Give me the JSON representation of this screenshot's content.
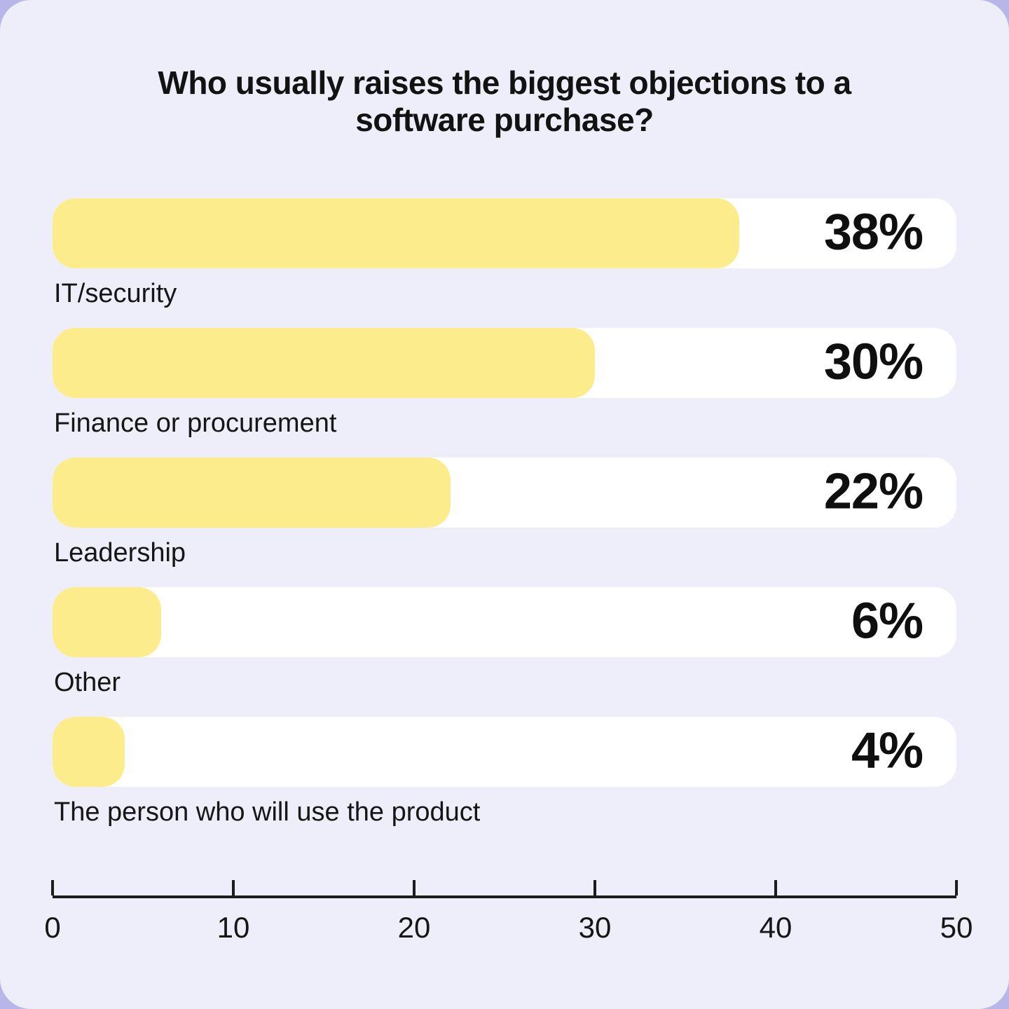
{
  "page": {
    "outer_background": "#b8b6e9",
    "panel_background": "#eeedfa"
  },
  "chart_data": {
    "type": "bar",
    "orientation": "horizontal",
    "title": "Who usually raises the biggest objections to a software purchase?",
    "categories": [
      "IT/security",
      "Finance or procurement",
      "Leadership",
      "Other",
      "The person who will use the product"
    ],
    "values": [
      38,
      30,
      22,
      6,
      4
    ],
    "xlabel": "",
    "ylabel": "",
    "xlim": [
      0,
      50
    ],
    "x_ticks": [
      0,
      10,
      20,
      30,
      40,
      50
    ],
    "grid": "off",
    "legend": "none",
    "bar_color": "#fdec8c",
    "track_color": "#ffffff",
    "text_color": "#161616",
    "bars": [
      {
        "label": "IT/security",
        "value": 38,
        "pct": "38%"
      },
      {
        "label": "Finance or procurement",
        "value": 30,
        "pct": "30%"
      },
      {
        "label": "Leadership",
        "value": 22,
        "pct": "22%"
      },
      {
        "label": "Other",
        "value": 6,
        "pct": "6%"
      },
      {
        "label": "The person who will use the product",
        "value": 4,
        "pct": "4%"
      }
    ],
    "tick_labels": [
      "0",
      "10",
      "20",
      "30",
      "40",
      "50"
    ]
  }
}
